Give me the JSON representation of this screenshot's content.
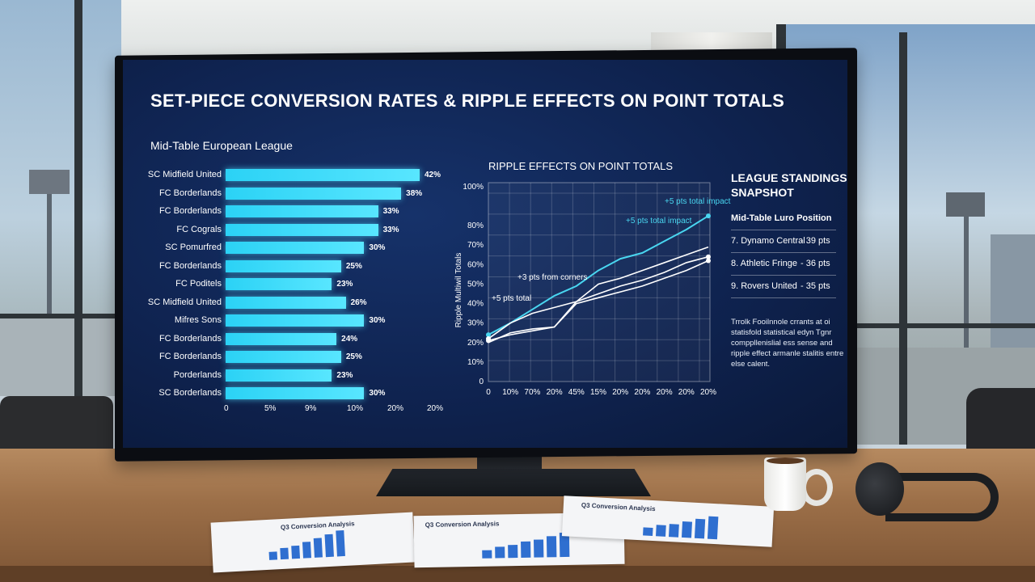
{
  "dashboard": {
    "title": "SET-PIECE CONVERSION RATES & RIPPLE EFFECTS ON POINT TOTALS",
    "subtitle": "Mid-Table European League",
    "colors": {
      "bar": "#3fdcfb",
      "line_highlight": "#49d6f0",
      "line_white": "#ffffff",
      "background": "#0f2350"
    }
  },
  "chart_data": [
    {
      "type": "bar",
      "orientation": "horizontal",
      "categories": [
        "SC Midfield United",
        "FC Borderlands",
        "FC Borderlands",
        "FC Cograls",
        "SC Pomurfred",
        "FC Borderlands",
        "FC Poditels",
        "SC Midfield United",
        "Mifres Sons",
        "FC Borderlands",
        "FC Borderlands",
        "Porderlands",
        "SC Borderlands"
      ],
      "values": [
        42,
        38,
        33,
        33,
        30,
        25,
        23,
        26,
        30,
        24,
        25,
        23,
        30
      ],
      "value_labels": [
        "42%",
        "38%",
        "33%",
        "33%",
        "30%",
        "25%",
        "23%",
        "26%",
        "30%",
        "24%",
        "25%",
        "23%",
        "30%"
      ],
      "x_tick_labels": [
        "0",
        "5%",
        "9%",
        "10%",
        "20%",
        "20%"
      ]
    },
    {
      "type": "line",
      "title": "RIPPLE EFFECTS ON POINT TOTALS",
      "ylabel": "Ripple Multiwil Totals",
      "y_tick_labels": [
        "0",
        "10%",
        "20%",
        "30%",
        "40%",
        "50%",
        "60%",
        "70%",
        "80%",
        "100%"
      ],
      "x_tick_labels": [
        "0",
        "10%",
        "70%",
        "20%",
        "45%",
        "15%",
        "20%",
        "20%",
        "20%",
        "20%",
        "20%"
      ],
      "ylim": [
        0,
        100
      ],
      "series": [
        {
          "values": [
            24,
            30,
            37,
            44,
            49,
            57,
            63,
            66,
            72,
            78,
            85
          ]
        },
        {
          "values": [
            22,
            30,
            35,
            38,
            41,
            45,
            49,
            52,
            56,
            61,
            64
          ]
        },
        {
          "values": [
            20,
            25,
            27,
            28,
            41,
            50,
            53,
            57,
            61,
            65,
            69
          ]
        },
        {
          "values": [
            21,
            24,
            26,
            28,
            40,
            43,
            46,
            49,
            53,
            57,
            62
          ]
        }
      ],
      "annotations": [
        "+5 pts total impact",
        "+5 pts total impact",
        "+3 pts from corners",
        "+5 pts total"
      ]
    }
  ],
  "standings": {
    "title_line1": "LEAGUE STANDINGS",
    "title_line2": "SNAPSHOT",
    "subtitle": "Mid-Table Luro Position",
    "rows": [
      {
        "team": "7. Dynamo Central",
        "pts": "- 39 pts"
      },
      {
        "team": "8. Athletic Fringe",
        "pts": "- 36 pts"
      },
      {
        "team": "9. Rovers United",
        "pts": "- 35 pts"
      }
    ],
    "notes": "Trrolk Fooilnnole crrants at oi statisfold statistical edyn Tgnr comppllenislial ess sense and ripple effect armanle stalitis entre else calent."
  },
  "papers": [
    {
      "title": "Q3 Conversion Analysis"
    },
    {
      "title": "Q3 Conversion Analysis"
    },
    {
      "title": "Q3 Conversion Analysis"
    }
  ]
}
